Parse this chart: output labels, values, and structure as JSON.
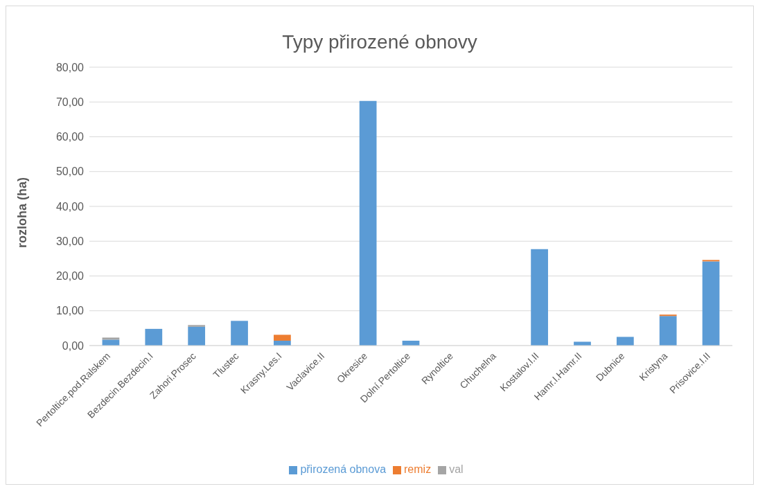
{
  "chart_data": {
    "type": "bar",
    "title": "Typy přirozené obnovy",
    "ylabel": "rozloha (ha)",
    "stacked": true,
    "categories": [
      "Pertoltice.pod.Ralskem",
      "Bezdecin.Bezdecin.I",
      "Zahori.Prosec",
      "Tlustec",
      "Krasny.Les.I",
      "Vaclavice.II",
      "Okresice",
      "Dolní.Pertoltice",
      "Rynoltice",
      "Chuchelna",
      "Kostalov.I.II",
      "Hamr.I.Hamr.II",
      "Dubnice",
      "Kristyna",
      "Prisovice.I.II"
    ],
    "series": [
      {
        "name": "přirozená obnova",
        "color": "#5b9bd5",
        "values": [
          1.7,
          4.8,
          5.4,
          7.1,
          1.4,
          0,
          70.3,
          1.4,
          0,
          0,
          27.7,
          1.1,
          2.5,
          8.5,
          24.2
        ]
      },
      {
        "name": "remiz",
        "color": "#ed7d31",
        "values": [
          0,
          0,
          0,
          0,
          1.7,
          0,
          0,
          0,
          0,
          0,
          0,
          0,
          0,
          0.4,
          0.4
        ]
      },
      {
        "name": "val",
        "color": "#a5a5a5",
        "values": [
          0.6,
          0,
          0.5,
          0,
          0,
          0,
          0,
          0,
          0,
          0,
          0,
          0,
          0,
          0,
          0
        ]
      }
    ],
    "ylim": [
      0,
      80
    ],
    "yticks": [
      {
        "value": 0,
        "label": "0,00"
      },
      {
        "value": 10,
        "label": "10,00"
      },
      {
        "value": 20,
        "label": "20,00"
      },
      {
        "value": 30,
        "label": "30,00"
      },
      {
        "value": 40,
        "label": "40,00"
      },
      {
        "value": 50,
        "label": "50,00"
      },
      {
        "value": 60,
        "label": "60,00"
      },
      {
        "value": 70,
        "label": "70,00"
      },
      {
        "value": 80,
        "label": "80,00"
      }
    ],
    "grid": "y",
    "legend": "bottom"
  }
}
